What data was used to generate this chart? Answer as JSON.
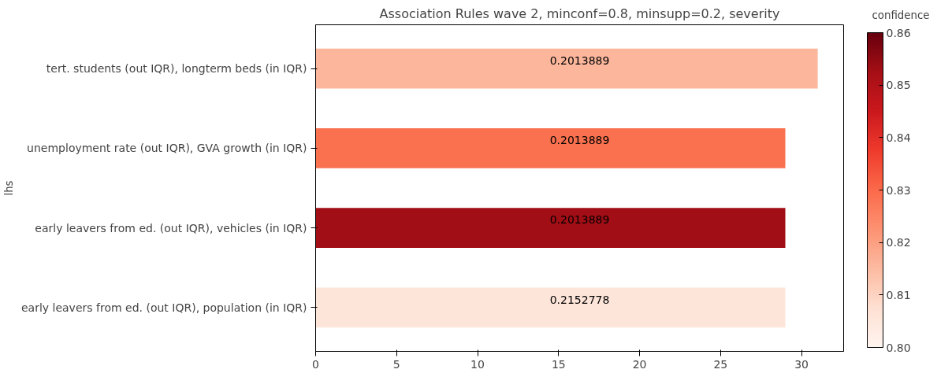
{
  "chart_data": {
    "type": "bar",
    "orientation": "horizontal",
    "title": "Association Rules wave 2, minconf=0.8, minsupp=0.2, severity",
    "ylabel": "lhs",
    "categories": [
      "tert. students (out IQR), longterm beds (in IQR)",
      "unemployment rate (out IQR), GVA growth (in IQR)",
      "early leavers from ed. (out IQR), vehicles (in IQR)",
      "early leavers from ed. (out IQR), population (in IQR)"
    ],
    "values": [
      31,
      29,
      29,
      29
    ],
    "colors": [
      "#fcb69b",
      "#f9714f",
      "#a10e16",
      "#fee5d9"
    ],
    "annotations": [
      "0.2013889",
      "0.2013889",
      "0.2013889",
      "0.2152778"
    ],
    "xlim": [
      0,
      32.6
    ],
    "xticks": [
      0,
      5,
      10,
      15,
      20,
      25,
      30
    ],
    "clabel": "confidence",
    "clim": [
      0.8,
      0.86
    ],
    "cticks": [
      {
        "value": 0.8,
        "label": "0.80"
      },
      0.81,
      0.82,
      0.83,
      0.84,
      0.85,
      0.86
    ],
    "grid": false
  }
}
